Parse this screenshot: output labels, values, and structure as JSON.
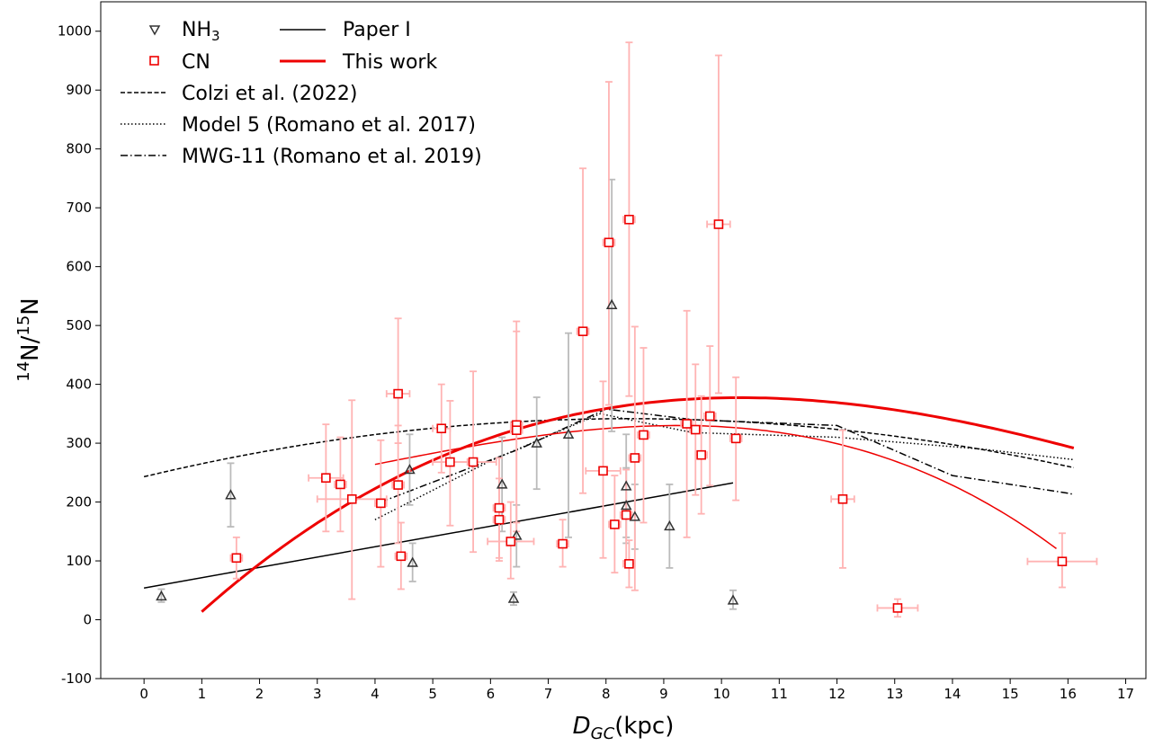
{
  "chart_data": {
    "type": "scatter",
    "title": "",
    "xlabel": {
      "base": "D",
      "sub": "GC",
      "rest": "(kpc)"
    },
    "ylabel": {
      "sup1": "14",
      "mid": "N/",
      "sup2": "15",
      "end": "N"
    },
    "xlim": [
      -0.75,
      17.35
    ],
    "ylim": [
      -100,
      1050
    ],
    "xticks": [
      0,
      1,
      2,
      3,
      4,
      5,
      6,
      7,
      8,
      9,
      10,
      11,
      12,
      13,
      14,
      15,
      16,
      17
    ],
    "yticks": [
      -100,
      0,
      100,
      200,
      300,
      400,
      500,
      600,
      700,
      800,
      900,
      1000
    ],
    "grid": false,
    "legend_position": "top-left",
    "legend": [
      {
        "key": "nh3",
        "label": "NH",
        "sub": "3",
        "style": "triangle-marker"
      },
      {
        "key": "paper1",
        "label": "Paper I",
        "style": "solid-black"
      },
      {
        "key": "cn",
        "label": "CN",
        "style": "square-marker"
      },
      {
        "key": "thiswork",
        "label": "This work",
        "style": "solid-red-thick"
      },
      {
        "key": "colzi",
        "label": "Colzi et al. (2022)",
        "style": "dashed"
      },
      {
        "key": "model5",
        "label": "Model 5 (Romano et al. 2017)",
        "style": "dotted"
      },
      {
        "key": "mwg11",
        "label": "MWG-11 (Romano et al. 2019)",
        "style": "dashdot"
      }
    ],
    "colors": {
      "red": "#ee0000",
      "red_err": "#ffb3b3",
      "gray": "#333333",
      "gray_err": "#bbbbbb",
      "black": "#000000"
    },
    "series_nh3": [
      {
        "x": 0.3,
        "y": 40,
        "ylo": 30,
        "yhi": 52
      },
      {
        "x": 1.5,
        "y": 212,
        "ylo": 158,
        "yhi": 266
      },
      {
        "x": 4.6,
        "y": 255,
        "ylo": 195,
        "yhi": 315
      },
      {
        "x": 4.65,
        "y": 97,
        "ylo": 65,
        "yhi": 130
      },
      {
        "x": 6.2,
        "y": 230,
        "ylo": 150,
        "yhi": 310
      },
      {
        "x": 6.4,
        "y": 36,
        "ylo": 25,
        "yhi": 47
      },
      {
        "x": 6.45,
        "y": 143,
        "ylo": 90,
        "yhi": 195
      },
      {
        "x": 6.8,
        "y": 300,
        "ylo": 222,
        "yhi": 378
      },
      {
        "x": 7.35,
        "y": 315,
        "ylo": 140,
        "yhi": 487
      },
      {
        "x": 8.1,
        "y": 535,
        "ylo": 320,
        "yhi": 748
      },
      {
        "x": 8.35,
        "y": 227,
        "ylo": 140,
        "yhi": 315
      },
      {
        "x": 8.35,
        "y": 194,
        "ylo": 130,
        "yhi": 258
      },
      {
        "x": 8.5,
        "y": 175,
        "ylo": 120,
        "yhi": 230
      },
      {
        "x": 9.1,
        "y": 159,
        "ylo": 88,
        "yhi": 230
      },
      {
        "x": 10.2,
        "y": 33,
        "ylo": 18,
        "yhi": 50
      }
    ],
    "series_cn": [
      {
        "x": 1.6,
        "y": 105,
        "ylo": 70,
        "yhi": 140,
        "xlo": 1.5,
        "xhi": 1.7
      },
      {
        "x": 3.15,
        "y": 241,
        "ylo": 150,
        "yhi": 332,
        "xlo": 2.85,
        "xhi": 3.45
      },
      {
        "x": 3.4,
        "y": 230,
        "ylo": 150,
        "yhi": 310,
        "xlo": 3.3,
        "xhi": 3.5
      },
      {
        "x": 3.6,
        "y": 205,
        "ylo": 35,
        "yhi": 373,
        "xlo": 3.0,
        "xhi": 4.2
      },
      {
        "x": 4.1,
        "y": 198,
        "ylo": 90,
        "yhi": 305,
        "xlo": 4.0,
        "xhi": 4.2
      },
      {
        "x": 4.4,
        "y": 384,
        "ylo": 300,
        "yhi": 512,
        "xlo": 4.2,
        "xhi": 4.6
      },
      {
        "x": 4.4,
        "y": 229,
        "ylo": 130,
        "yhi": 330,
        "xlo": 4.3,
        "xhi": 4.5
      },
      {
        "x": 4.45,
        "y": 108,
        "ylo": 52,
        "yhi": 165,
        "xlo": 4.35,
        "xhi": 4.55
      },
      {
        "x": 5.15,
        "y": 325,
        "ylo": 250,
        "yhi": 400,
        "xlo": 5.0,
        "xhi": 5.3
      },
      {
        "x": 5.3,
        "y": 268,
        "ylo": 160,
        "yhi": 372,
        "xlo": 5.0,
        "xhi": 5.6
      },
      {
        "x": 5.7,
        "y": 268,
        "ylo": 115,
        "yhi": 422,
        "xlo": 5.3,
        "xhi": 6.1
      },
      {
        "x": 6.15,
        "y": 190,
        "ylo": 105,
        "yhi": 275,
        "xlo": 6.05,
        "xhi": 6.25
      },
      {
        "x": 6.15,
        "y": 170,
        "ylo": 100,
        "yhi": 240,
        "xlo": 6.05,
        "xhi": 6.25
      },
      {
        "x": 6.35,
        "y": 133,
        "ylo": 70,
        "yhi": 200,
        "xlo": 5.95,
        "xhi": 6.75
      },
      {
        "x": 6.45,
        "y": 331,
        "ylo": 165,
        "yhi": 507,
        "xlo": 6.35,
        "xhi": 6.55
      },
      {
        "x": 6.45,
        "y": 322,
        "ylo": 150,
        "yhi": 490,
        "xlo": 6.35,
        "xhi": 6.55
      },
      {
        "x": 7.25,
        "y": 129,
        "ylo": 90,
        "yhi": 170,
        "xlo": 7.15,
        "xhi": 7.35
      },
      {
        "x": 7.6,
        "y": 490,
        "ylo": 215,
        "yhi": 767,
        "xlo": 7.5,
        "xhi": 7.7
      },
      {
        "x": 7.95,
        "y": 253,
        "ylo": 105,
        "yhi": 405,
        "xlo": 7.65,
        "xhi": 8.25
      },
      {
        "x": 8.05,
        "y": 641,
        "ylo": 365,
        "yhi": 914,
        "xlo": 7.95,
        "xhi": 8.15
      },
      {
        "x": 8.15,
        "y": 162,
        "ylo": 80,
        "yhi": 245,
        "xlo": 8.05,
        "xhi": 8.25
      },
      {
        "x": 8.35,
        "y": 178,
        "ylo": 100,
        "yhi": 255,
        "xlo": 8.25,
        "xhi": 8.45
      },
      {
        "x": 8.4,
        "y": 680,
        "ylo": 380,
        "yhi": 981,
        "xlo": 8.3,
        "xhi": 8.5
      },
      {
        "x": 8.4,
        "y": 95,
        "ylo": 55,
        "yhi": 135,
        "xlo": 8.3,
        "xhi": 8.5
      },
      {
        "x": 8.5,
        "y": 275,
        "ylo": 50,
        "yhi": 498,
        "xlo": 8.4,
        "xhi": 8.6
      },
      {
        "x": 8.65,
        "y": 314,
        "ylo": 165,
        "yhi": 462,
        "xlo": 8.55,
        "xhi": 8.75
      },
      {
        "x": 9.4,
        "y": 333,
        "ylo": 140,
        "yhi": 525,
        "xlo": 9.3,
        "xhi": 9.5
      },
      {
        "x": 9.55,
        "y": 323,
        "ylo": 212,
        "yhi": 434,
        "xlo": 9.45,
        "xhi": 9.65
      },
      {
        "x": 9.65,
        "y": 280,
        "ylo": 180,
        "yhi": 380,
        "xlo": 9.55,
        "xhi": 9.75
      },
      {
        "x": 9.8,
        "y": 346,
        "ylo": 228,
        "yhi": 465,
        "xlo": 9.7,
        "xhi": 9.9
      },
      {
        "x": 9.95,
        "y": 672,
        "ylo": 385,
        "yhi": 959,
        "xlo": 9.75,
        "xhi": 10.15
      },
      {
        "x": 10.25,
        "y": 308,
        "ylo": 203,
        "yhi": 412,
        "xlo": 10.15,
        "xhi": 10.35
      },
      {
        "x": 12.1,
        "y": 205,
        "ylo": 88,
        "yhi": 322,
        "xlo": 11.9,
        "xhi": 12.3
      },
      {
        "x": 13.05,
        "y": 20,
        "ylo": 5,
        "yhi": 35,
        "xlo": 12.7,
        "xhi": 13.4
      },
      {
        "x": 15.9,
        "y": 99,
        "ylo": 55,
        "yhi": 147,
        "xlo": 15.3,
        "xhi": 16.5
      }
    ],
    "line_paper1": {
      "x0": 0,
      "x1": 10.2,
      "a": 54,
      "b": 17.5
    },
    "curve_thiswork": {
      "x0": 1.0,
      "x1": 16.1,
      "c0": -80.0,
      "c1": 100.0,
      "c2": -6.5,
      "c3": 0.107
    },
    "curve_thiswork_thin": {
      "x0": 4.0,
      "x1": 15.8,
      "peak_x": 9.25,
      "peak_y": 330,
      "k": 3.5
    },
    "curve_colzi": {
      "x0": 0,
      "x1": 16.1,
      "c0": 243,
      "c1": 23.5,
      "c2": -1.4
    },
    "line_model5": [
      [
        4.0,
        170
      ],
      [
        6.0,
        270
      ],
      [
        7.9,
        350
      ],
      [
        9.5,
        318
      ],
      [
        12.0,
        310
      ],
      [
        14.5,
        290
      ],
      [
        16.1,
        272
      ]
    ],
    "line_mwg11": [
      [
        4.1,
        200
      ],
      [
        6.5,
        290
      ],
      [
        8.0,
        358
      ],
      [
        9.5,
        340
      ],
      [
        12.0,
        330
      ],
      [
        14.0,
        245
      ],
      [
        16.0,
        215
      ],
      [
        16.1,
        213
      ]
    ]
  }
}
